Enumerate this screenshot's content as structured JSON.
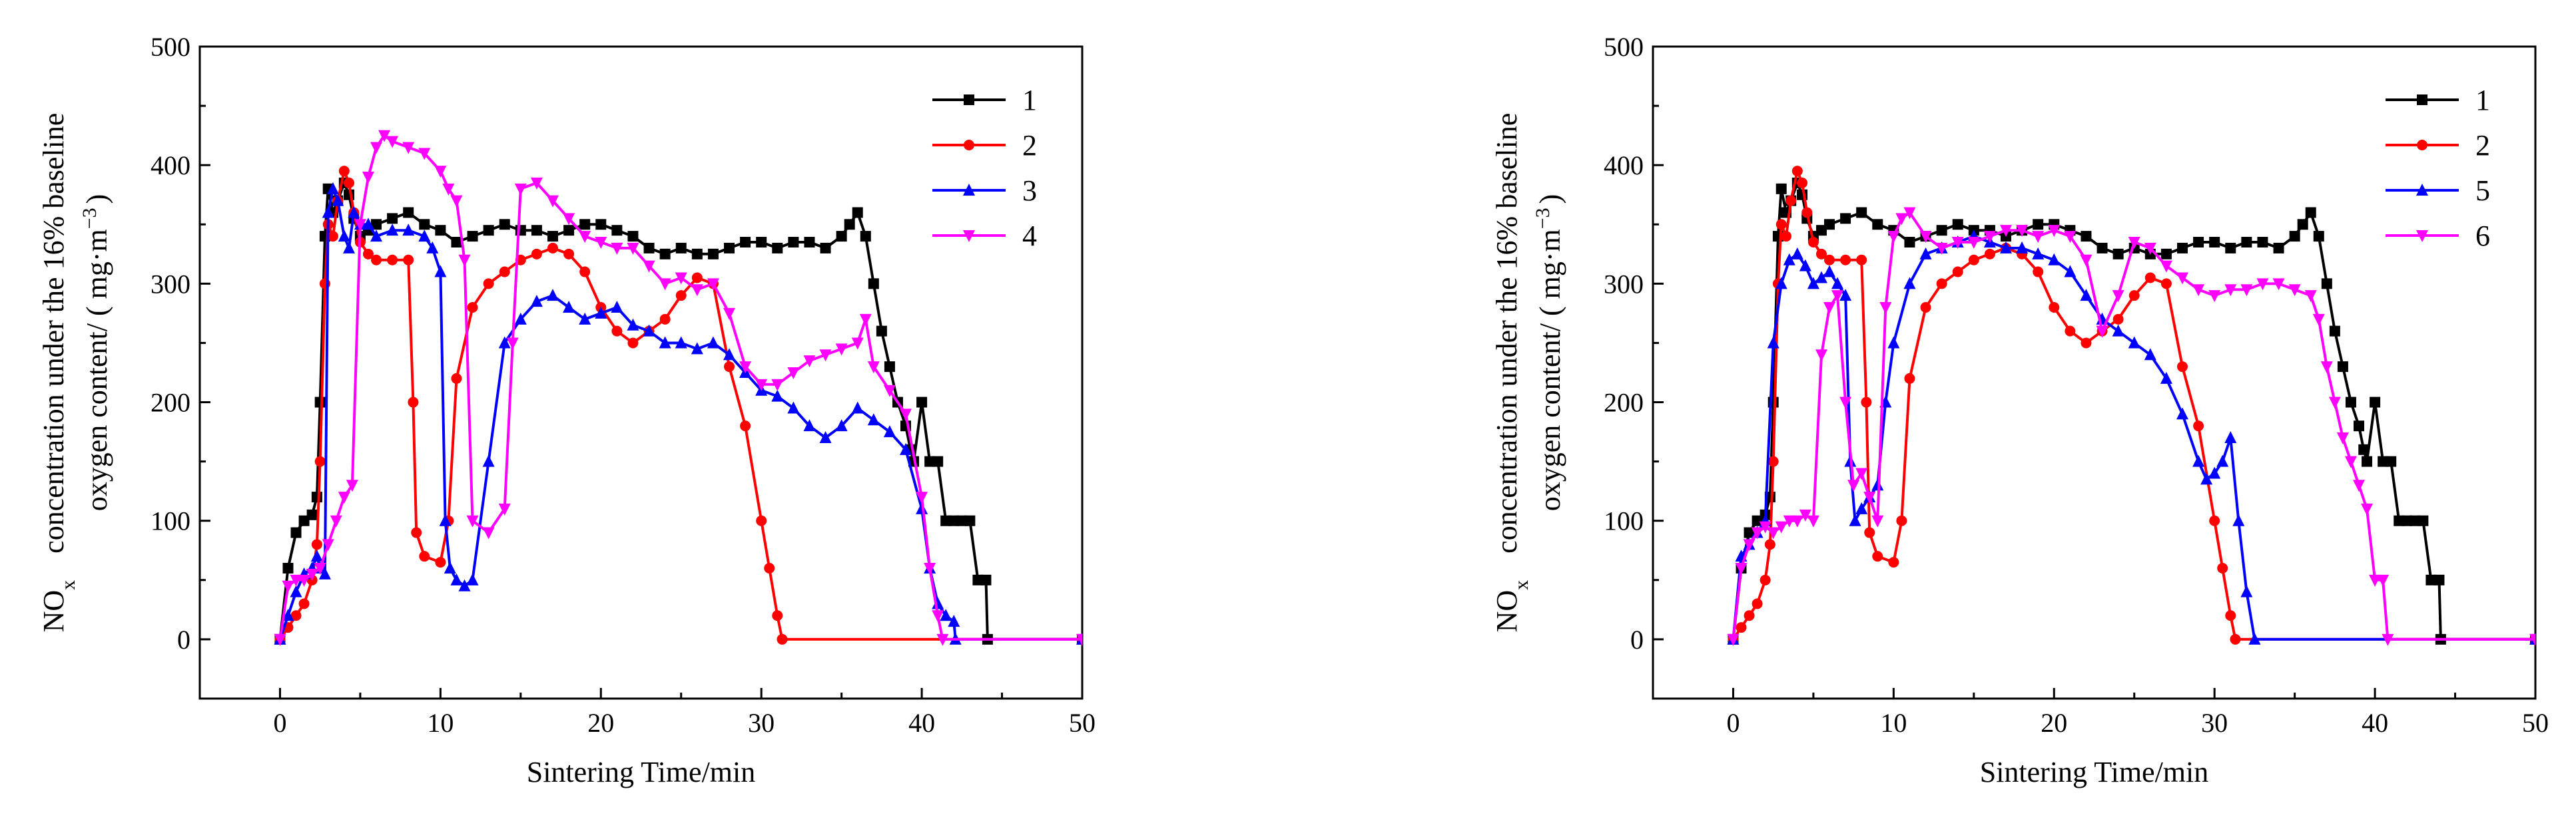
{
  "figure": {
    "description_panels": 2
  },
  "chart_data": [
    {
      "type": "line",
      "title": "",
      "xlabel": "Sintering Time/min",
      "ylabel_main": "concentration under the 16% baseline",
      "ylabel_sub": "oxygen content/ ( mg·m",
      "ylabel_sup": "−3",
      "ylabel_close": ")",
      "ylabel_nox": "NO",
      "ylabel_nox_sub": "x",
      "xlim": [
        -5,
        50
      ],
      "ylim": [
        -50,
        500
      ],
      "xticks": [
        0,
        10,
        20,
        30,
        40,
        50
      ],
      "yticks": [
        0,
        100,
        200,
        300,
        400,
        500
      ],
      "xtick_labels": [
        "0",
        "10",
        "20",
        "30",
        "40",
        "50"
      ],
      "ytick_labels": [
        "0",
        "100",
        "200",
        "300",
        "400",
        "500"
      ],
      "legend_position": "top-right",
      "series": [
        {
          "name": "1",
          "color": "#000000",
          "marker": "square",
          "x": [
            0,
            0.5,
            1,
            1.5,
            2,
            2.3,
            2.5,
            2.8,
            3.0,
            3.3,
            3.6,
            4.0,
            4.3,
            4.6,
            5,
            5.5,
            6,
            7,
            8,
            9,
            10,
            11,
            12,
            13,
            14,
            15,
            16,
            17,
            18,
            19,
            20,
            21,
            22,
            23,
            24,
            25,
            26,
            27,
            28,
            29,
            30,
            31,
            32,
            33,
            34,
            35,
            35.5,
            36,
            36.5,
            37,
            37.5,
            38,
            38.5,
            39,
            39.3,
            39.5,
            40,
            40.5,
            41,
            41.5,
            42,
            42.5,
            43,
            43.5,
            44,
            44.1,
            50
          ],
          "y": [
            0,
            60,
            90,
            100,
            105,
            120,
            200,
            340,
            380,
            360,
            370,
            385,
            375,
            355,
            340,
            345,
            350,
            355,
            360,
            350,
            345,
            335,
            340,
            345,
            350,
            345,
            345,
            340,
            345,
            350,
            350,
            345,
            340,
            330,
            325,
            330,
            325,
            325,
            330,
            335,
            335,
            330,
            335,
            335,
            330,
            340,
            350,
            360,
            340,
            300,
            260,
            230,
            200,
            180,
            160,
            150,
            200,
            150,
            150,
            100,
            100,
            100,
            100,
            50,
            50,
            0,
            0
          ]
        },
        {
          "name": "2",
          "color": "#ff0000",
          "marker": "circle",
          "x": [
            0,
            0.5,
            1,
            1.5,
            2,
            2.3,
            2.5,
            2.8,
            3.0,
            3.3,
            3.6,
            4.0,
            4.3,
            4.6,
            5,
            5.5,
            6,
            7,
            8,
            8.3,
            8.5,
            9,
            10,
            10.5,
            11,
            12,
            13,
            14,
            15,
            16,
            17,
            18,
            19,
            20,
            21,
            22,
            23,
            24,
            25,
            26,
            27,
            28,
            29,
            30,
            30.5,
            31,
            31.3,
            50
          ],
          "y": [
            0,
            10,
            20,
            30,
            50,
            80,
            150,
            300,
            350,
            340,
            370,
            395,
            385,
            360,
            335,
            325,
            320,
            320,
            320,
            200,
            90,
            70,
            65,
            100,
            220,
            280,
            300,
            310,
            320,
            325,
            330,
            325,
            310,
            280,
            260,
            250,
            260,
            270,
            290,
            305,
            300,
            230,
            180,
            100,
            60,
            20,
            0,
            0
          ]
        },
        {
          "name": "3",
          "color": "#0000ff",
          "marker": "triangle-up",
          "x": [
            0,
            0.5,
            1,
            1.5,
            2,
            2.3,
            2.5,
            2.8,
            3.0,
            3.3,
            3.6,
            4.0,
            4.3,
            4.6,
            5,
            5.5,
            6,
            7,
            8,
            9,
            9.5,
            10,
            10.3,
            10.6,
            11,
            11.5,
            12,
            13,
            14,
            15,
            16,
            17,
            18,
            19,
            20,
            21,
            22,
            23,
            24,
            25,
            26,
            27,
            28,
            29,
            30,
            31,
            32,
            33,
            34,
            35,
            36,
            37,
            38,
            39,
            40,
            40.5,
            41,
            41.5,
            42,
            42.1,
            50
          ],
          "y": [
            0,
            20,
            40,
            55,
            60,
            70,
            60,
            55,
            360,
            380,
            370,
            340,
            330,
            360,
            350,
            350,
            340,
            345,
            345,
            340,
            330,
            310,
            100,
            60,
            50,
            45,
            50,
            150,
            250,
            270,
            285,
            290,
            280,
            270,
            275,
            280,
            265,
            260,
            250,
            250,
            245,
            250,
            240,
            225,
            210,
            205,
            195,
            180,
            170,
            180,
            195,
            185,
            175,
            160,
            110,
            60,
            30,
            20,
            15,
            0,
            0
          ]
        },
        {
          "name": "4",
          "color": "#ff00ff",
          "marker": "triangle-down",
          "x": [
            0,
            0.5,
            1,
            1.5,
            2,
            2.5,
            3.0,
            3.5,
            4.0,
            4.5,
            5,
            5.5,
            6,
            6.5,
            7,
            8,
            9,
            10,
            10.5,
            11,
            11.5,
            12,
            13,
            14,
            14.5,
            15,
            16,
            17,
            18,
            19,
            20,
            21,
            22,
            23,
            24,
            25,
            26,
            27,
            28,
            29,
            30,
            31,
            32,
            33,
            34,
            35,
            36,
            36.5,
            37,
            38,
            39,
            40,
            40.5,
            41,
            41.3,
            50
          ],
          "y": [
            0,
            45,
            50,
            50,
            55,
            60,
            80,
            100,
            120,
            130,
            350,
            390,
            415,
            425,
            420,
            415,
            410,
            395,
            380,
            370,
            320,
            100,
            90,
            110,
            250,
            380,
            385,
            370,
            355,
            340,
            335,
            330,
            330,
            315,
            300,
            305,
            295,
            300,
            275,
            230,
            215,
            215,
            225,
            235,
            240,
            245,
            250,
            270,
            230,
            210,
            190,
            120,
            60,
            20,
            0,
            0
          ]
        }
      ]
    },
    {
      "type": "line",
      "title": "",
      "xlabel": "Sintering Time/min",
      "ylabel_main": "concentration under the 16% baseline",
      "ylabel_sub": "oxygen content/ ( mg·m",
      "ylabel_sup": "−3",
      "ylabel_close": ")",
      "ylabel_nox": "NO",
      "ylabel_nox_sub": "x",
      "xlim": [
        -5,
        50
      ],
      "ylim": [
        -50,
        500
      ],
      "xticks": [
        0,
        10,
        20,
        30,
        40,
        50
      ],
      "yticks": [
        0,
        100,
        200,
        300,
        400,
        500
      ],
      "xtick_labels": [
        "0",
        "10",
        "20",
        "30",
        "40",
        "50"
      ],
      "ytick_labels": [
        "0",
        "100",
        "200",
        "300",
        "400",
        "500"
      ],
      "legend_position": "top-right",
      "series": [
        {
          "name": "1",
          "color": "#000000",
          "marker": "square",
          "x": [
            0,
            0.5,
            1,
            1.5,
            2,
            2.3,
            2.5,
            2.8,
            3.0,
            3.3,
            3.6,
            4.0,
            4.3,
            4.6,
            5,
            5.5,
            6,
            7,
            8,
            9,
            10,
            11,
            12,
            13,
            14,
            15,
            16,
            17,
            18,
            19,
            20,
            21,
            22,
            23,
            24,
            25,
            26,
            27,
            28,
            29,
            30,
            31,
            32,
            33,
            34,
            35,
            35.5,
            36,
            36.5,
            37,
            37.5,
            38,
            38.5,
            39,
            39.3,
            39.5,
            40,
            40.5,
            41,
            41.5,
            42,
            42.5,
            43,
            43.5,
            44,
            44.1,
            50
          ],
          "y": [
            0,
            60,
            90,
            100,
            105,
            120,
            200,
            340,
            380,
            360,
            370,
            385,
            375,
            355,
            340,
            345,
            350,
            355,
            360,
            350,
            345,
            335,
            340,
            345,
            350,
            345,
            345,
            340,
            345,
            350,
            350,
            345,
            340,
            330,
            325,
            330,
            325,
            325,
            330,
            335,
            335,
            330,
            335,
            335,
            330,
            340,
            350,
            360,
            340,
            300,
            260,
            230,
            200,
            180,
            160,
            150,
            200,
            150,
            150,
            100,
            100,
            100,
            100,
            50,
            50,
            0,
            0
          ]
        },
        {
          "name": "2",
          "color": "#ff0000",
          "marker": "circle",
          "x": [
            0,
            0.5,
            1,
            1.5,
            2,
            2.3,
            2.5,
            2.8,
            3.0,
            3.3,
            3.6,
            4.0,
            4.3,
            4.6,
            5,
            5.5,
            6,
            7,
            8,
            8.3,
            8.5,
            9,
            10,
            10.5,
            11,
            12,
            13,
            14,
            15,
            16,
            17,
            18,
            19,
            20,
            21,
            22,
            23,
            24,
            25,
            26,
            27,
            28,
            29,
            30,
            30.5,
            31,
            31.3,
            50
          ],
          "y": [
            0,
            10,
            20,
            30,
            50,
            80,
            150,
            300,
            350,
            340,
            370,
            395,
            385,
            360,
            335,
            325,
            320,
            320,
            320,
            200,
            90,
            70,
            65,
            100,
            220,
            280,
            300,
            310,
            320,
            325,
            330,
            325,
            310,
            280,
            260,
            250,
            260,
            270,
            290,
            305,
            300,
            230,
            180,
            100,
            60,
            20,
            0,
            0
          ]
        },
        {
          "name": "5",
          "color": "#0000ff",
          "marker": "triangle-up",
          "x": [
            0,
            0.5,
            1,
            1.5,
            2,
            2.5,
            3.0,
            3.5,
            4.0,
            4.5,
            5,
            5.5,
            6,
            6.5,
            7,
            7.3,
            7.6,
            8,
            8.5,
            9,
            9.5,
            10,
            11,
            12,
            13,
            14,
            15,
            16,
            17,
            18,
            19,
            20,
            21,
            22,
            23,
            24,
            25,
            26,
            27,
            28,
            29,
            29.5,
            30,
            30.5,
            31,
            31.5,
            32,
            32.5,
            50
          ],
          "y": [
            0,
            70,
            80,
            90,
            100,
            250,
            300,
            320,
            325,
            315,
            300,
            305,
            310,
            300,
            290,
            150,
            100,
            110,
            120,
            130,
            200,
            250,
            300,
            325,
            330,
            335,
            340,
            335,
            330,
            330,
            325,
            320,
            310,
            290,
            270,
            260,
            250,
            240,
            220,
            190,
            150,
            135,
            140,
            150,
            170,
            100,
            40,
            0,
            0
          ]
        },
        {
          "name": "6",
          "color": "#ff00ff",
          "marker": "triangle-down",
          "x": [
            0,
            0.5,
            1,
            1.5,
            2,
            2.5,
            3.0,
            3.5,
            4.0,
            4.5,
            5,
            5.5,
            6,
            6.5,
            7,
            7.5,
            8,
            8.5,
            9,
            9.5,
            10,
            10.5,
            11,
            12,
            13,
            14,
            15,
            16,
            17,
            18,
            19,
            20,
            21,
            22,
            23,
            24,
            25,
            26,
            27,
            28,
            29,
            30,
            31,
            32,
            33,
            34,
            35,
            36,
            36.5,
            37,
            37.5,
            38,
            38.5,
            39,
            39.5,
            40,
            40.5,
            40.8,
            50
          ],
          "y": [
            0,
            60,
            80,
            90,
            95,
            90,
            95,
            100,
            100,
            105,
            100,
            240,
            280,
            290,
            200,
            130,
            140,
            120,
            100,
            280,
            340,
            355,
            360,
            340,
            330,
            335,
            335,
            340,
            345,
            345,
            340,
            345,
            340,
            320,
            260,
            290,
            335,
            330,
            315,
            305,
            295,
            290,
            295,
            295,
            300,
            300,
            295,
            290,
            270,
            230,
            200,
            170,
            150,
            130,
            110,
            50,
            50,
            0,
            0
          ]
        }
      ]
    }
  ]
}
